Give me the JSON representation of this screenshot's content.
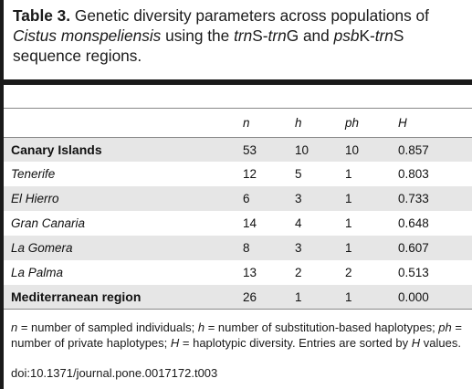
{
  "caption": {
    "label": "Table 3.",
    "t1": " Genetic diversity parameters across populations of ",
    "species": "Cistus monspeliensis",
    "t2": " using the ",
    "region1": "trn",
    "t3": "S-",
    "region2": "trn",
    "t4": "G and ",
    "region3": "psb",
    "t5": "K-",
    "region4": "trn",
    "t6": "S sequence regions."
  },
  "table": {
    "headers": [
      "",
      "n",
      "h",
      "ph",
      "H"
    ],
    "rows": [
      {
        "name": "Canary Islands",
        "n": "53",
        "h": "10",
        "ph": "10",
        "H": "0.857"
      },
      {
        "name": "Tenerife",
        "n": "12",
        "h": "5",
        "ph": "1",
        "H": "0.803"
      },
      {
        "name": "El Hierro",
        "n": "6",
        "h": "3",
        "ph": "1",
        "H": "0.733"
      },
      {
        "name": "Gran Canaria",
        "n": "14",
        "h": "4",
        "ph": "1",
        "H": "0.648"
      },
      {
        "name": "La Gomera",
        "n": "8",
        "h": "3",
        "ph": "1",
        "H": "0.607"
      },
      {
        "name": "La Palma",
        "n": "13",
        "h": "2",
        "ph": "2",
        "H": "0.513"
      },
      {
        "name": "Mediterranean region",
        "n": "26",
        "h": "1",
        "ph": "1",
        "H": "0.000"
      }
    ]
  },
  "footnote": {
    "s1": "n",
    "t1": " = number of sampled individuals; ",
    "s2": "h",
    "t2": " = number of substitution-based haplotypes; ",
    "s3": "ph",
    "t3": " = number of private haplotypes; ",
    "s4": "H",
    "t4": " = haplotypic diversity. Entries are sorted by ",
    "s5": "H",
    "t5": " values."
  },
  "doi": "doi:10.1371/journal.pone.0017172.t003"
}
